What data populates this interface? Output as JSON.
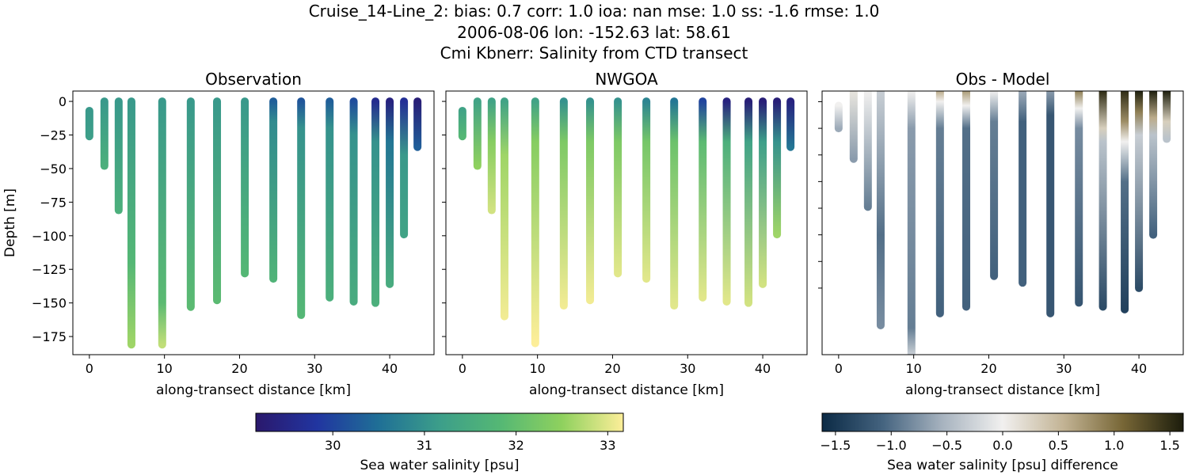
{
  "title_lines": [
    "Cruise_14-Line_2: bias: 0.7  corr: 1.0  ioa: nan  mse: 1.0  ss: -1.6  rmse: 1.0",
    "2006-08-06 lon: -152.63 lat: 58.61",
    "Cmi Kbnerr: Salinity from CTD transect"
  ],
  "chart_data": [
    {
      "type": "scatter",
      "title": "Observation",
      "xlabel": "along-transect distance [km]",
      "ylabel": "Depth [m]",
      "xlim": [
        -2.2,
        45.9
      ],
      "ylim": [
        -188.5,
        7.7
      ],
      "xticks": [
        0,
        10,
        20,
        30,
        40
      ],
      "yticks": [
        0,
        -25,
        -50,
        -75,
        -100,
        -125,
        -150,
        -175
      ],
      "colorbar": "salinity",
      "stations": [
        {
          "x": 0,
          "profile": [
            [
              -7,
              31.1
            ],
            [
              -26,
              31.2
            ]
          ]
        },
        {
          "x": 2,
          "profile": [
            [
              0,
              31.1
            ],
            [
              -48,
              31.6
            ]
          ]
        },
        {
          "x": 3.9,
          "profile": [
            [
              0,
              31.1
            ],
            [
              -81,
              31.6
            ]
          ]
        },
        {
          "x": 5.6,
          "profile": [
            [
              0,
              31.1
            ],
            [
              -120,
              31.8
            ],
            [
              -181,
              32.6
            ]
          ]
        },
        {
          "x": 9.7,
          "profile": [
            [
              0,
              31.1
            ],
            [
              -150,
              31.9
            ],
            [
              -181,
              32.8
            ]
          ]
        },
        {
          "x": 13.5,
          "profile": [
            [
              0,
              31.1
            ],
            [
              -153,
              31.9
            ]
          ]
        },
        {
          "x": 17,
          "profile": [
            [
              0,
              31.1
            ],
            [
              -148,
              31.9
            ]
          ]
        },
        {
          "x": 20.7,
          "profile": [
            [
              0,
              31.1
            ],
            [
              -128,
              31.8
            ]
          ]
        },
        {
          "x": 24.5,
          "profile": [
            [
              0,
              30.3
            ],
            [
              -15,
              30.9
            ],
            [
              -132,
              31.7
            ]
          ]
        },
        {
          "x": 28.2,
          "profile": [
            [
              0,
              30.2
            ],
            [
              -20,
              31.0
            ],
            [
              -159,
              31.8
            ]
          ]
        },
        {
          "x": 32,
          "profile": [
            [
              0,
              30.3
            ],
            [
              -20,
              31.0
            ],
            [
              -146,
              31.6
            ]
          ]
        },
        {
          "x": 35.2,
          "profile": [
            [
              0,
              30.1
            ],
            [
              -25,
              31.0
            ],
            [
              -149,
              31.5
            ]
          ]
        },
        {
          "x": 38.1,
          "profile": [
            [
              0,
              29.6
            ],
            [
              -30,
              31.0
            ],
            [
              -150,
              31.6
            ]
          ]
        },
        {
          "x": 40,
          "profile": [
            [
              0,
              29.4
            ],
            [
              -30,
              30.6
            ],
            [
              -136,
              31.5
            ]
          ]
        },
        {
          "x": 41.9,
          "profile": [
            [
              0,
              29.7
            ],
            [
              -40,
              31.1
            ],
            [
              -99,
              31.3
            ]
          ]
        },
        {
          "x": 43.7,
          "profile": [
            [
              0,
              29.3
            ],
            [
              -34,
              30.3
            ]
          ]
        }
      ]
    },
    {
      "type": "scatter",
      "title": "NWGOA",
      "xlabel": "along-transect distance [km]",
      "ylabel": "",
      "xlim": [
        -2.2,
        45.9
      ],
      "ylim": [
        -188.5,
        7.7
      ],
      "xticks": [
        0,
        10,
        20,
        30,
        40
      ],
      "colorbar": "salinity",
      "stations": [
        {
          "x": 0,
          "profile": [
            [
              -7,
              31.3
            ],
            [
              -26,
              31.8
            ]
          ]
        },
        {
          "x": 2,
          "profile": [
            [
              0,
              31.3
            ],
            [
              -48,
              32.5
            ]
          ]
        },
        {
          "x": 3.9,
          "profile": [
            [
              0,
              31.3
            ],
            [
              -30,
              32.4
            ],
            [
              -81,
              32.9
            ]
          ]
        },
        {
          "x": 5.6,
          "profile": [
            [
              0,
              31.3
            ],
            [
              -40,
              32.6
            ],
            [
              -160,
              33.1
            ]
          ]
        },
        {
          "x": 9.7,
          "profile": [
            [
              0,
              31.3
            ],
            [
              -30,
              32.4
            ],
            [
              -180,
              33.2
            ]
          ]
        },
        {
          "x": 13.5,
          "profile": [
            [
              0,
              31.0
            ],
            [
              -30,
              32.3
            ],
            [
              -152,
              33.1
            ]
          ]
        },
        {
          "x": 17,
          "profile": [
            [
              0,
              31.0
            ],
            [
              -30,
              32.3
            ],
            [
              -148,
              33.1
            ]
          ]
        },
        {
          "x": 20.7,
          "profile": [
            [
              0,
              31.0
            ],
            [
              -30,
              32.3
            ],
            [
              -128,
              33.0
            ]
          ]
        },
        {
          "x": 24.5,
          "profile": [
            [
              0,
              30.8
            ],
            [
              -30,
              32.2
            ],
            [
              -132,
              33.0
            ]
          ]
        },
        {
          "x": 28.2,
          "profile": [
            [
              0,
              30.6
            ],
            [
              -30,
              32.1
            ],
            [
              -152,
              33.0
            ]
          ]
        },
        {
          "x": 32,
          "profile": [
            [
              0,
              30.0
            ],
            [
              -30,
              31.9
            ],
            [
              -146,
              33.0
            ]
          ]
        },
        {
          "x": 35.2,
          "profile": [
            [
              0,
              29.4
            ],
            [
              -30,
              31.6
            ],
            [
              -149,
              33.0
            ]
          ]
        },
        {
          "x": 38.1,
          "profile": [
            [
              0,
              29.3
            ],
            [
              -30,
              31.3
            ],
            [
              -150,
              32.9
            ]
          ]
        },
        {
          "x": 40,
          "profile": [
            [
              0,
              29.3
            ],
            [
              -30,
              31.2
            ],
            [
              -136,
              32.9
            ]
          ]
        },
        {
          "x": 41.9,
          "profile": [
            [
              0,
              29.3
            ],
            [
              -30,
              31.0
            ],
            [
              -99,
              32.6
            ]
          ]
        },
        {
          "x": 43.7,
          "profile": [
            [
              0,
              29.4
            ],
            [
              -34,
              30.6
            ]
          ]
        }
      ]
    },
    {
      "type": "scatter",
      "title": "Obs - Model",
      "xlabel": "along-transect distance [km]",
      "ylabel": "",
      "xlim": [
        -2.2,
        45.9
      ],
      "ylim": [
        -190,
        8
      ],
      "xticks": [
        0,
        10,
        20,
        30,
        40
      ],
      "colorbar": "difference",
      "stations": [
        {
          "x": 0,
          "profile": [
            [
              -3,
              0.0
            ],
            [
              -20,
              -0.6
            ]
          ]
        },
        {
          "x": 2,
          "profile": [
            [
              8,
              0.1
            ],
            [
              -43,
              -0.7
            ]
          ]
        },
        {
          "x": 3.9,
          "profile": [
            [
              8,
              0.0
            ],
            [
              -79,
              -0.9
            ]
          ]
        },
        {
          "x": 5.6,
          "profile": [
            [
              8,
              -0.3
            ],
            [
              -100,
              -1.0
            ],
            [
              -168,
              -0.8
            ]
          ]
        },
        {
          "x": 9.7,
          "profile": [
            [
              8,
              0.0
            ],
            [
              -20,
              -0.7
            ],
            [
              -170,
              -0.9
            ],
            [
              -190,
              -0.3
            ]
          ]
        },
        {
          "x": 13.5,
          "profile": [
            [
              8,
              0.6
            ],
            [
              0,
              0.0
            ],
            [
              -20,
              -0.9
            ],
            [
              -159,
              -1.1
            ]
          ]
        },
        {
          "x": 17,
          "profile": [
            [
              8,
              0.7
            ],
            [
              -3,
              0.0
            ],
            [
              -20,
              -1.0
            ],
            [
              -154,
              -1.1
            ]
          ]
        },
        {
          "x": 20.7,
          "profile": [
            [
              8,
              0.0
            ],
            [
              -15,
              -0.9
            ],
            [
              -131,
              -1.1
            ]
          ]
        },
        {
          "x": 24.5,
          "profile": [
            [
              8,
              -0.6
            ],
            [
              -15,
              -1.1
            ],
            [
              -136,
              -1.1
            ]
          ]
        },
        {
          "x": 28.2,
          "profile": [
            [
              8,
              -0.7
            ],
            [
              -10,
              -1.2
            ],
            [
              -159,
              -1.2
            ]
          ]
        },
        {
          "x": 32,
          "profile": [
            [
              8,
              0.9
            ],
            [
              -5,
              0.0
            ],
            [
              -20,
              -0.8
            ],
            [
              -151,
              -1.2
            ]
          ]
        },
        {
          "x": 35.2,
          "profile": [
            [
              8,
              1.5
            ],
            [
              -20,
              0.3
            ],
            [
              -30,
              -0.4
            ],
            [
              -154,
              -1.3
            ]
          ]
        },
        {
          "x": 38.1,
          "profile": [
            [
              8,
              1.5
            ],
            [
              -15,
              0.8
            ],
            [
              -30,
              0.0
            ],
            [
              -60,
              -1.0
            ],
            [
              -156,
              -1.4
            ]
          ]
        },
        {
          "x": 40,
          "profile": [
            [
              8,
              1.6
            ],
            [
              -8,
              0.9
            ],
            [
              -25,
              -0.3
            ],
            [
              -140,
              -1.3
            ]
          ]
        },
        {
          "x": 41.9,
          "profile": [
            [
              8,
              1.6
            ],
            [
              -12,
              0.6
            ],
            [
              -25,
              -0.4
            ],
            [
              -100,
              -1.1
            ]
          ]
        },
        {
          "x": 43.7,
          "profile": [
            [
              8,
              1.6
            ],
            [
              -15,
              0.3
            ],
            [
              -28,
              -0.4
            ]
          ]
        }
      ]
    }
  ],
  "colorbars": {
    "salinity": {
      "label": "Sea water salinity [psu]",
      "range": [
        29.16,
        33.17
      ],
      "ticks": [
        "30",
        "31",
        "32",
        "33"
      ],
      "colors": [
        "#2a186c",
        "#2135a0",
        "#1f6f96",
        "#3c9e8a",
        "#55b874",
        "#8fd15e",
        "#fdee99"
      ]
    },
    "difference": {
      "label": "Sea water salinity [psu] difference",
      "range": [
        -1.62,
        1.62
      ],
      "ticks": [
        "−1.5",
        "−1.0",
        "−0.5",
        "0.0",
        "0.5",
        "1.0",
        "1.5"
      ],
      "colors": [
        "#0b2a45",
        "#44637f",
        "#a7b3bf",
        "#f1f0ef",
        "#c3b495",
        "#776636",
        "#1c1d0c"
      ]
    }
  }
}
